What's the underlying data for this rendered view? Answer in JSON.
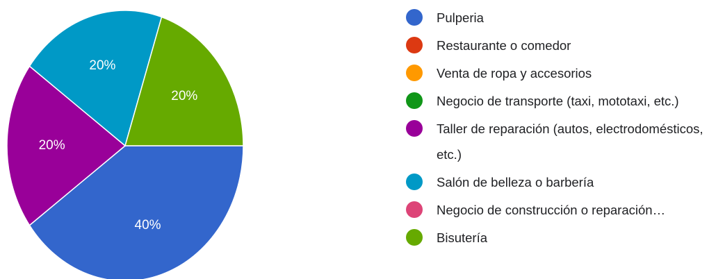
{
  "chart_data": {
    "type": "pie",
    "categories": [
      "Pulperia",
      "Restaurante o comedor",
      "Venta de ropa y accesorios",
      "Negocio de transporte (taxi, mototaxi, etc.)",
      "Taller de reparación (autos, electrodomésticos, etc.)",
      "Salón de belleza o barbería",
      "Negocio de construcción o reparación…",
      "Bisutería"
    ],
    "values": [
      40,
      0,
      0,
      0,
      20,
      20,
      0,
      20
    ],
    "value_labels": [
      "40%",
      null,
      null,
      null,
      "20%",
      "20%",
      null,
      "20%"
    ],
    "colors": [
      "#3366cc",
      "#dc3912",
      "#ff9900",
      "#109618",
      "#990099",
      "#0099c6",
      "#dd4477",
      "#66aa00"
    ],
    "legend": "right"
  }
}
